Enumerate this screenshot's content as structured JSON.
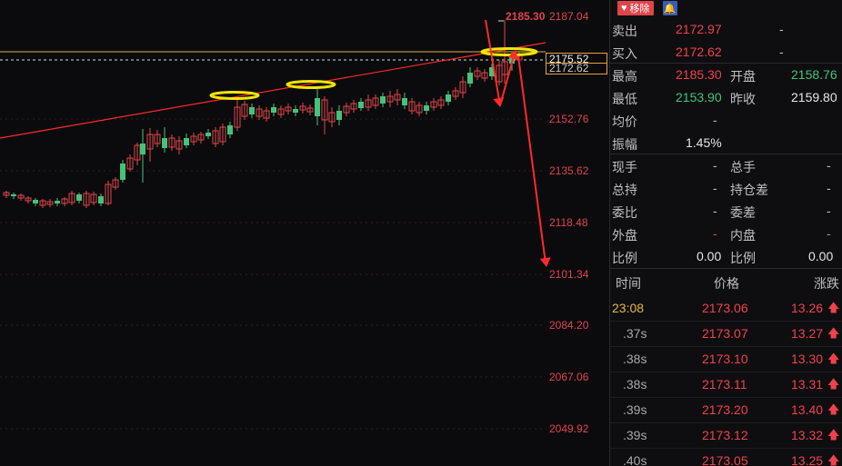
{
  "chart": {
    "axis_labels": [
      "2187.04",
      "2175.52",
      "2152.76",
      "2135.62",
      "2118.48",
      "2101.34",
      "2084.20",
      "2067.06",
      "2049.92"
    ],
    "last_price_tag": "2175.52",
    "prev_price_tag": "2172.62",
    "peak_label": "2185.30",
    "colors": {
      "up": "#e0454b",
      "down": "#44c37a",
      "trend": "#ff2a2a",
      "highlight": "#f2e600",
      "guide": "#d8b24a"
    }
  },
  "panel": {
    "remove_label": "移除",
    "quote": {
      "sell_label": "卖出",
      "sell_value": "2172.97",
      "sell_vol": "-",
      "buy_label": "买入",
      "buy_value": "2172.62",
      "buy_vol": "-",
      "high_label": "最高",
      "high_value": "2185.30",
      "open_label": "开盘",
      "open_value": "2158.76",
      "low_label": "最低",
      "low_value": "2153.90",
      "prev_close_label": "昨收",
      "prev_close_value": "2159.80",
      "avg_label": "均价",
      "avg_value": "-",
      "amp_label": "振幅",
      "amp_value": "1.45%",
      "now_vol_label": "现手",
      "now_vol_value": "-",
      "total_vol_label": "总手",
      "total_vol_value": "-",
      "total_hold_label": "总持",
      "total_hold_value": "-",
      "hold_diff_label": "持仓差",
      "hold_diff_value": "-",
      "order_ratio_label": "委比",
      "order_ratio_value": "-",
      "order_diff_label": "委差",
      "order_diff_value": "-",
      "outer_label": "外盘",
      "outer_value": "-",
      "inner_label": "内盘",
      "inner_value": "-",
      "ratio1_label": "比例",
      "ratio1_value": "0.00",
      "ratio2_label": "比例",
      "ratio2_value": "0.00"
    },
    "ticks_header": {
      "time": "时间",
      "price": "价格",
      "change": "涨跌"
    },
    "ticks": [
      {
        "time": "23:08",
        "price": "2173.06",
        "change": "13.26"
      },
      {
        "time": ".37s",
        "price": "2173.07",
        "change": "13.27"
      },
      {
        "time": ".38s",
        "price": "2173.10",
        "change": "13.30"
      },
      {
        "time": ".38s",
        "price": "2173.11",
        "change": "13.31"
      },
      {
        "time": ".39s",
        "price": "2173.20",
        "change": "13.40"
      },
      {
        "time": ".39s",
        "price": "2173.12",
        "change": "13.32"
      },
      {
        "time": ".40s",
        "price": "2173.05",
        "change": "13.25"
      }
    ]
  }
}
